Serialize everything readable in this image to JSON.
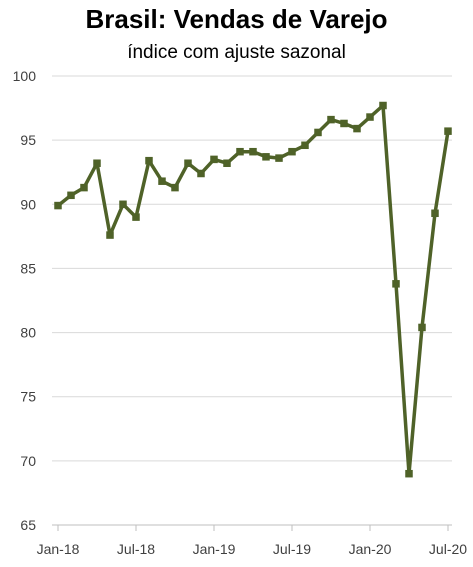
{
  "chart_data": {
    "type": "line",
    "title": "Brasil: Vendas de Varejo",
    "subtitle": "índice com ajuste sazonal",
    "xlabel": "",
    "ylabel": "",
    "ylim": [
      65,
      100
    ],
    "yticks": [
      65,
      70,
      75,
      80,
      85,
      90,
      95,
      100
    ],
    "x_tick_labels": [
      "Jan-18",
      "Jul-18",
      "Jan-19",
      "Jul-19",
      "Jan-20",
      "Jul-20"
    ],
    "x_tick_indices": [
      0,
      6,
      12,
      18,
      24,
      30
    ],
    "grid": "horizontal",
    "legend": "none",
    "series": [
      {
        "color": "#4f6228",
        "x": [
          "Jan-18",
          "Feb-18",
          "Mar-18",
          "Apr-18",
          "May-18",
          "Jun-18",
          "Jul-18",
          "Aug-18",
          "Sep-18",
          "Oct-18",
          "Nov-18",
          "Dec-18",
          "Jan-19",
          "Feb-19",
          "Mar-19",
          "Apr-19",
          "May-19",
          "Jun-19",
          "Jul-19",
          "Aug-19",
          "Sep-19",
          "Oct-19",
          "Nov-19",
          "Dec-19",
          "Jan-20",
          "Feb-20",
          "Mar-20",
          "Apr-20",
          "May-20",
          "Jun-20",
          "Jul-20"
        ],
        "values": [
          89.9,
          90.7,
          91.3,
          93.2,
          87.6,
          90.0,
          89.0,
          93.4,
          91.8,
          91.3,
          93.2,
          92.4,
          93.5,
          93.2,
          94.1,
          94.1,
          93.7,
          93.6,
          94.1,
          94.6,
          95.6,
          96.6,
          96.3,
          95.9,
          96.8,
          97.7,
          83.8,
          69.0,
          80.4,
          89.3,
          95.7
        ]
      }
    ]
  }
}
